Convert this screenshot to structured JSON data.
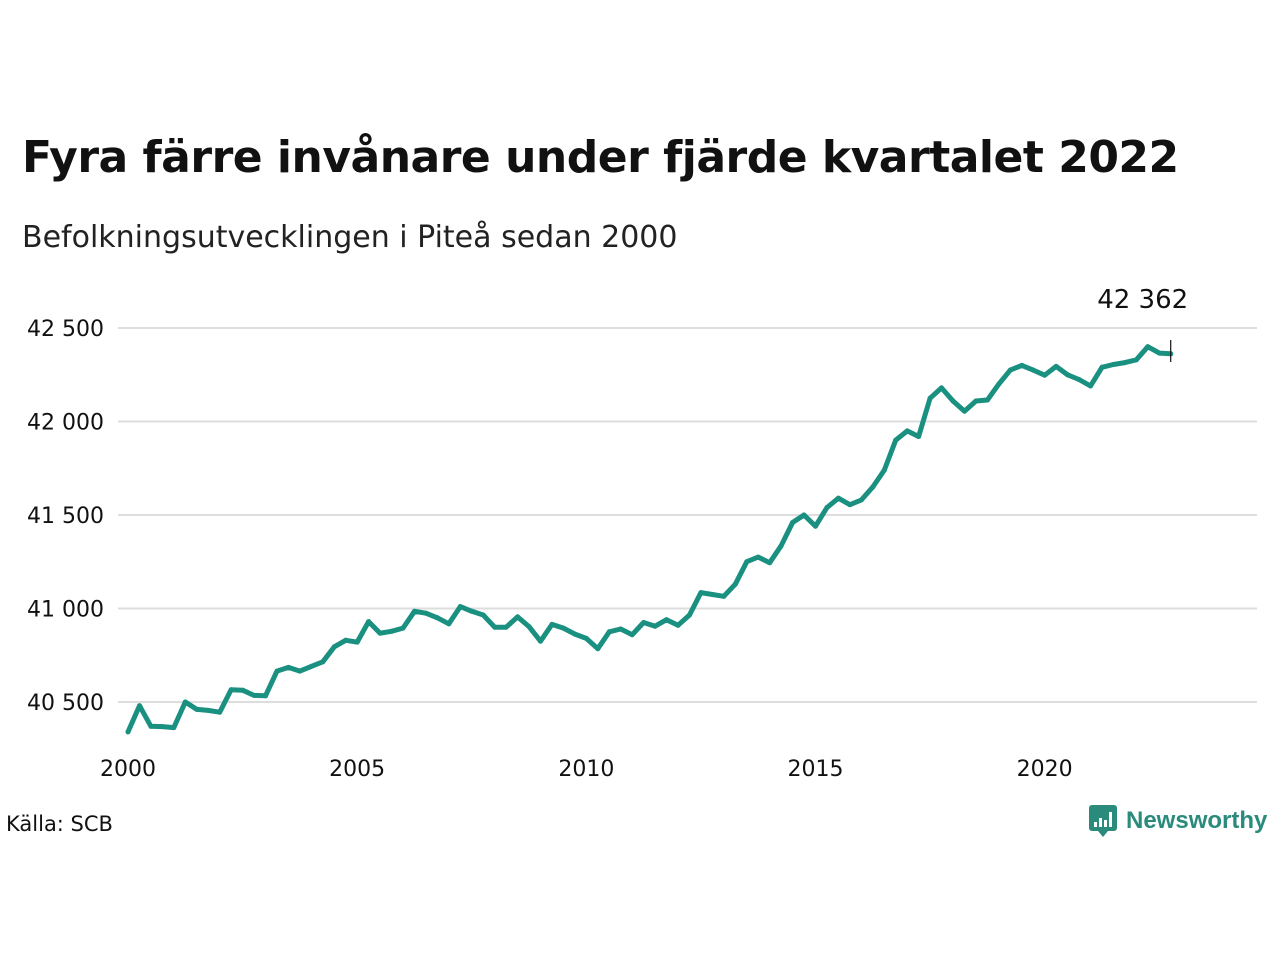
{
  "title": "Fyra färre invånare under fjärde kvartalet 2022",
  "subtitle": "Befolkningsutvecklingen i Piteå sedan 2000",
  "source": "Källa: SCB",
  "brand": "Newsworthy",
  "colors": {
    "line": "#1a9080",
    "grid": "#dddddd",
    "brand": "#2a8b7c"
  },
  "chart_data": {
    "type": "line",
    "title": "Fyra färre invånare under fjärde kvartalet 2022",
    "subtitle": "Befolkningsutvecklingen i Piteå sedan 2000",
    "xlabel": "",
    "ylabel": "",
    "xlim": [
      2000,
      2024
    ],
    "ylim": [
      40350,
      42650
    ],
    "grid": true,
    "x_ticks": [
      {
        "value": 2000,
        "label": "2000"
      },
      {
        "value": 2005,
        "label": "2005"
      },
      {
        "value": 2010,
        "label": "2010"
      },
      {
        "value": 2015,
        "label": "2015"
      },
      {
        "value": 2020,
        "label": "2020"
      }
    ],
    "y_ticks": [
      {
        "value": 40500,
        "label": "40 500"
      },
      {
        "value": 41000,
        "label": "41 000"
      },
      {
        "value": 41500,
        "label": "41 500"
      },
      {
        "value": 42000,
        "label": "42 000"
      },
      {
        "value": 42500,
        "label": "42 500"
      }
    ],
    "annotation": {
      "x": 2022.75,
      "y": 42362,
      "label": "42 362"
    },
    "series": [
      {
        "x": [
          2000.0,
          2000.25,
          2000.5,
          2000.75,
          2001.0,
          2001.25,
          2001.5,
          2001.75,
          2002.0,
          2002.25,
          2002.5,
          2002.75,
          2003.0,
          2003.25,
          2003.5,
          2003.75,
          2004.0,
          2004.25,
          2004.5,
          2004.75,
          2005.0,
          2005.25,
          2005.5,
          2005.75,
          2006.0,
          2006.25,
          2006.5,
          2006.75,
          2007.0,
          2007.25,
          2007.5,
          2007.75,
          2008.0,
          2008.25,
          2008.5,
          2008.75,
          2009.0,
          2009.25,
          2009.5,
          2009.75,
          2010.0,
          2010.25,
          2010.5,
          2010.75,
          2011.0,
          2011.25,
          2011.5,
          2011.75,
          2012.0,
          2012.25,
          2012.5,
          2012.75,
          2013.0,
          2013.25,
          2013.5,
          2013.75,
          2014.0,
          2014.25,
          2014.5,
          2014.75,
          2015.0,
          2015.25,
          2015.5,
          2015.75,
          2016.0,
          2016.25,
          2016.5,
          2016.75,
          2017.0,
          2017.25,
          2017.5,
          2017.75,
          2018.0,
          2018.25,
          2018.5,
          2018.75,
          2019.0,
          2019.25,
          2019.5,
          2019.75,
          2020.0,
          2020.25,
          2020.5,
          2020.75,
          2021.0,
          2021.25,
          2021.5,
          2021.75,
          2022.0,
          2022.25,
          2022.5,
          2022.75
        ],
        "y": [
          40340,
          40480,
          40370,
          40368,
          40363,
          40500,
          40460,
          40455,
          40445,
          40565,
          40563,
          40535,
          40533,
          40665,
          40685,
          40665,
          40690,
          40715,
          40795,
          40830,
          40820,
          40930,
          40868,
          40878,
          40895,
          40985,
          40975,
          40950,
          40918,
          41010,
          40985,
          40965,
          40900,
          40900,
          40955,
          40903,
          40825,
          40915,
          40895,
          40863,
          40840,
          40785,
          40875,
          40890,
          40860,
          40925,
          40905,
          40940,
          40910,
          40965,
          41085,
          41075,
          41065,
          41130,
          41250,
          41275,
          41245,
          41335,
          41460,
          41500,
          41440,
          41540,
          41590,
          41555,
          41580,
          41650,
          41740,
          41900,
          41950,
          41920,
          42125,
          42180,
          42110,
          42055,
          42110,
          42115,
          42200,
          42275,
          42300,
          42275,
          42248,
          42295,
          42250,
          42225,
          42190,
          42290,
          42305,
          42315,
          42330,
          42400,
          42366,
          42362
        ]
      }
    ]
  }
}
